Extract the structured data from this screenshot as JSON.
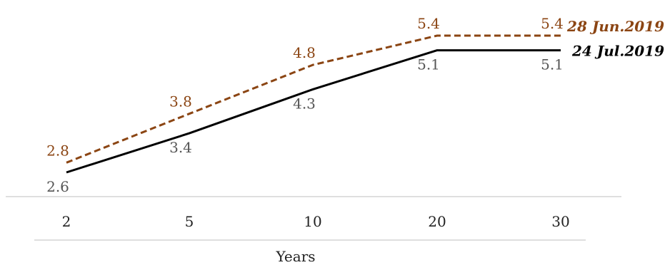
{
  "chart_data": {
    "type": "line",
    "title": "",
    "xlabel": "Years",
    "ylabel": "",
    "categories": [
      "2",
      "5",
      "10",
      "20",
      "30"
    ],
    "ylim": [
      2.0,
      5.6
    ],
    "grid": false,
    "series": [
      {
        "name": "28 Jun.2019",
        "values": [
          2.8,
          3.8,
          4.8,
          5.4,
          5.4
        ],
        "value_labels": [
          "2.8",
          "3.8",
          "4.8",
          "5.4",
          "5.4"
        ],
        "color": "#8B4513",
        "style": "dashed"
      },
      {
        "name": "24 Jul.2019",
        "values": [
          2.6,
          3.4,
          4.3,
          5.1,
          5.1
        ],
        "value_labels": [
          "2.6",
          "3.4",
          "4.3",
          "5.1",
          "5.1"
        ],
        "color": "#000000",
        "label_color": "#555555",
        "style": "solid"
      }
    ]
  }
}
